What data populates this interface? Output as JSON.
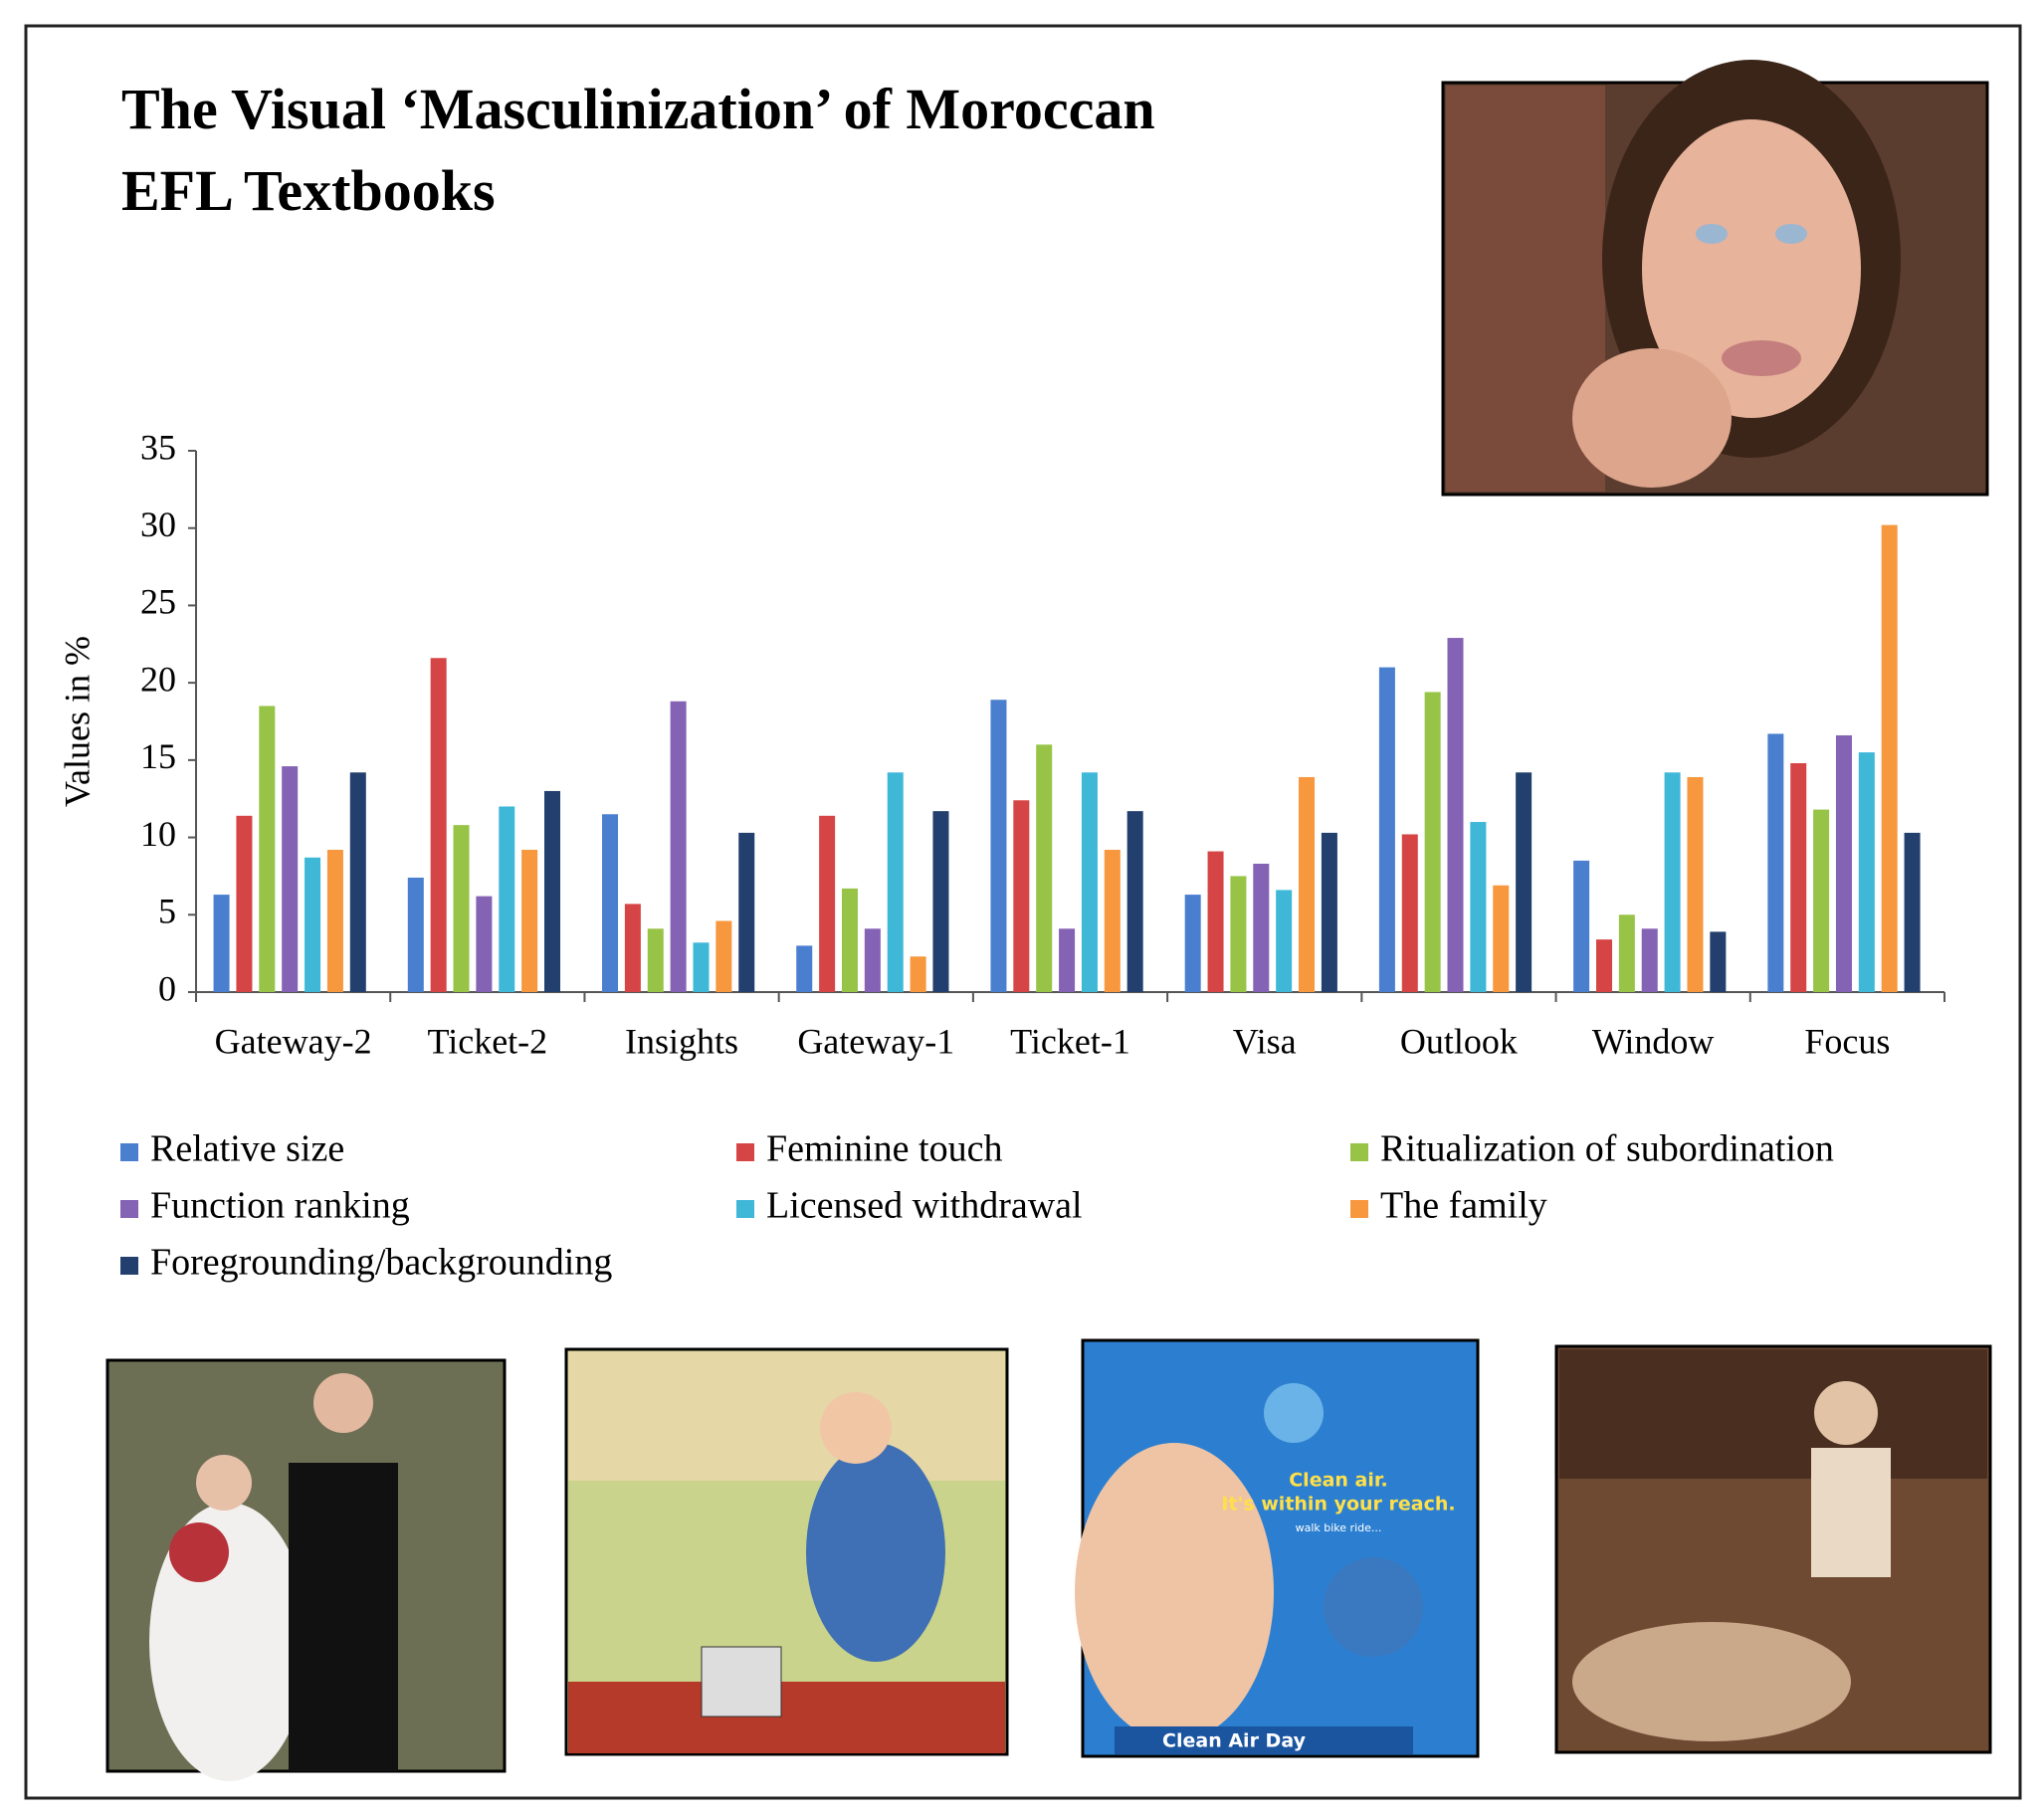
{
  "chart_data": {
    "type": "bar",
    "title": "The Visual ‘Masculinization’ of Moroccan EFL Textbooks",
    "y_label": "Values in %",
    "categories": [
      "Gateway-2",
      "Ticket-2",
      "Insights",
      "Gateway-1",
      "Ticket-1",
      "Visa",
      "Outlook",
      "Window",
      "Focus"
    ],
    "series": [
      {
        "name": "Relative size",
        "color": "#4a7fd0",
        "values": [
          6.3,
          7.4,
          11.5,
          3.0,
          18.9,
          6.3,
          21.0,
          8.5,
          16.7
        ]
      },
      {
        "name": "Feminine touch",
        "color": "#d64545",
        "values": [
          11.4,
          21.6,
          5.7,
          11.4,
          12.4,
          9.1,
          10.2,
          3.4,
          14.8
        ]
      },
      {
        "name": "Ritualization of subordination",
        "color": "#97c447",
        "values": [
          18.5,
          10.8,
          4.1,
          6.7,
          16.0,
          7.5,
          19.4,
          5.0,
          11.8
        ]
      },
      {
        "name": "Function ranking",
        "color": "#8462b4",
        "values": [
          14.6,
          6.2,
          18.8,
          4.1,
          4.1,
          8.3,
          22.9,
          4.1,
          16.6
        ]
      },
      {
        "name": "Licensed withdrawal",
        "color": "#3fb8d8",
        "values": [
          8.7,
          12.0,
          3.2,
          14.2,
          14.2,
          6.6,
          11.0,
          14.2,
          15.5
        ]
      },
      {
        "name": "The family",
        "color": "#f7973e",
        "values": [
          9.2,
          9.2,
          4.6,
          2.3,
          9.2,
          13.9,
          6.9,
          13.9,
          30.2
        ]
      },
      {
        "name": "Foregrounding/backgrounding",
        "color": "#223f6d",
        "values": [
          14.2,
          13.0,
          10.3,
          11.7,
          11.7,
          10.3,
          14.2,
          3.9,
          10.3
        ]
      }
    ],
    "ylim": [
      0,
      35
    ],
    "yticks": [
      0,
      5,
      10,
      15,
      20,
      25,
      30,
      35
    ],
    "grid": false,
    "legend": "bottom"
  },
  "images": {
    "poster": {
      "line1": "Clean air.",
      "line2": "It's within your reach.",
      "line3": "walk  bike  ride...",
      "banner": "Clean Air Day"
    }
  }
}
